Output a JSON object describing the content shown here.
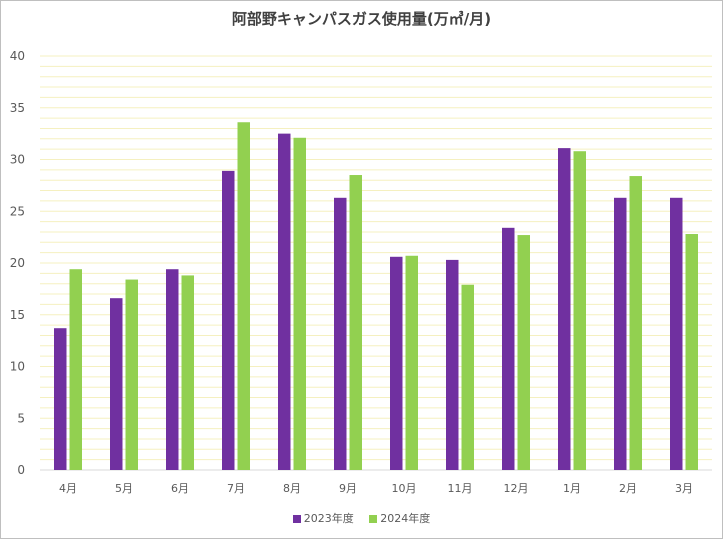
{
  "chart_data": {
    "type": "bar",
    "title": "阿部野キャンパスガス使用量(万㎥/月)",
    "categories": [
      "4月",
      "5月",
      "6月",
      "7月",
      "8月",
      "9月",
      "10月",
      "11月",
      "12月",
      "1月",
      "2月",
      "3月"
    ],
    "series": [
      {
        "name": "2023年度",
        "color": "#7030a0",
        "values": [
          13.7,
          16.6,
          19.4,
          28.9,
          32.5,
          26.3,
          20.6,
          20.3,
          23.4,
          31.1,
          26.3,
          26.3
        ]
      },
      {
        "name": "2024年度",
        "color": "#92d050",
        "values": [
          19.4,
          18.4,
          18.8,
          33.6,
          32.1,
          28.5,
          20.7,
          17.9,
          22.7,
          30.8,
          28.4,
          22.8
        ]
      }
    ],
    "ylim": [
      0,
      40
    ],
    "yticks": [
      0,
      5,
      10,
      15,
      20,
      25,
      30,
      35,
      40
    ],
    "grid": true,
    "legend_position": "bottom",
    "gridline_color": "#f5f0c0"
  }
}
